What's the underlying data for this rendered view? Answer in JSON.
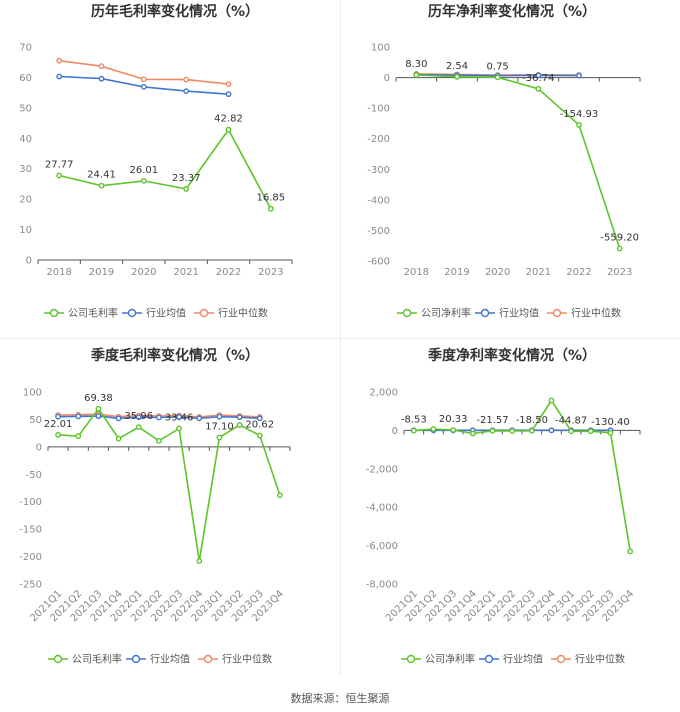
{
  "colors": {
    "company": "#5ec42a",
    "industry_avg": "#3f77cf",
    "industry_median": "#ef8a65",
    "grid": "#e6e6e6",
    "axis_text": "#8a8a8a",
    "label_text": "#333333",
    "title_text": "#333333"
  },
  "chart_data": [
    {
      "type": "line",
      "title": "历年毛利率变化情况（%）",
      "categories": [
        "2018",
        "2019",
        "2020",
        "2021",
        "2022",
        "2023"
      ],
      "ylim": [
        0,
        70
      ],
      "yticks": [
        0,
        10,
        20,
        30,
        40,
        50,
        60,
        70
      ],
      "ytick_labels": [
        "0",
        "10",
        "20",
        "30",
        "40",
        "50",
        "60",
        "70"
      ],
      "xlabel_rotate": false,
      "grid": false,
      "legend_position": "bottom-center",
      "series": [
        {
          "name": "公司毛利率",
          "key": "company",
          "values": [
            27.77,
            24.41,
            26.01,
            23.37,
            42.82,
            16.85
          ],
          "labels": [
            "27.77",
            "24.41",
            "26.01",
            "23.37",
            "42.82",
            "16.85"
          ]
        },
        {
          "name": "行业均值",
          "key": "industry_avg",
          "values": [
            60.3,
            59.6,
            56.9,
            55.5,
            54.5,
            null
          ],
          "labels": []
        },
        {
          "name": "行业中位数",
          "key": "industry_median",
          "values": [
            65.5,
            63.7,
            59.4,
            59.3,
            57.8,
            null
          ],
          "labels": []
        }
      ]
    },
    {
      "type": "line",
      "title": "历年净利率变化情况（%）",
      "categories": [
        "2018",
        "2019",
        "2020",
        "2021",
        "2022",
        "2023"
      ],
      "ylim": [
        -600,
        100
      ],
      "yticks": [
        -600,
        -500,
        -400,
        -300,
        -200,
        -100,
        0,
        100
      ],
      "ytick_labels": [
        "-600",
        "-500",
        "-400",
        "-300",
        "-200",
        "-100",
        "0",
        "100"
      ],
      "xlabel_rotate": false,
      "grid": false,
      "legend_position": "bottom-center",
      "series": [
        {
          "name": "公司净利率",
          "key": "company",
          "values": [
            8.3,
            2.54,
            0.75,
            -36.74,
            -154.93,
            -559.2
          ],
          "labels": [
            "8.30",
            "2.54",
            "0.75",
            "-36.74",
            "-154.93",
            "-559.20"
          ]
        },
        {
          "name": "行业均值",
          "key": "industry_avg",
          "values": [
            9.5,
            7.8,
            6.0,
            7.0,
            6.5,
            null
          ],
          "labels": []
        },
        {
          "name": "行业中位数",
          "key": "industry_median",
          "values": [
            12.0,
            10.5,
            8.5,
            9.0,
            8.5,
            null
          ],
          "labels": []
        }
      ]
    },
    {
      "type": "line",
      "title": "季度毛利率变化情况（%）",
      "categories": [
        "2021Q1",
        "2021Q2",
        "2021Q3",
        "2021Q4",
        "2022Q1",
        "2022Q2",
        "2022Q3",
        "2022Q4",
        "2023Q1",
        "2023Q2",
        "2023Q3",
        "2023Q4"
      ],
      "ylim": [
        -250,
        100
      ],
      "yticks": [
        -250,
        -200,
        -150,
        -100,
        -50,
        0,
        50,
        100
      ],
      "ytick_labels": [
        "-250",
        "-200",
        "-150",
        "-100",
        "-50",
        "0",
        "50",
        "100"
      ],
      "xlabel_rotate": true,
      "grid": false,
      "legend_position": "bottom-center",
      "series": [
        {
          "name": "公司毛利率",
          "key": "company",
          "values": [
            22.01,
            19.5,
            69.38,
            15.0,
            35.96,
            11.0,
            33.46,
            -208.0,
            17.1,
            40.0,
            20.62,
            -88.0
          ],
          "labels": [
            "22.01",
            "",
            "69.38",
            "",
            "35.96",
            "",
            "33.46",
            "",
            "17.10",
            "",
            "20.62",
            ""
          ]
        },
        {
          "name": "行业均值",
          "key": "industry_avg",
          "values": [
            55.0,
            55.5,
            56.0,
            52.0,
            54.0,
            53.5,
            54.5,
            52.0,
            55.0,
            54.0,
            52.0,
            null
          ],
          "labels": []
        },
        {
          "name": "行业中位数",
          "key": "industry_median",
          "values": [
            58.0,
            58.5,
            59.5,
            55.0,
            57.0,
            56.0,
            57.0,
            54.5,
            58.0,
            56.5,
            54.5,
            null
          ],
          "labels": []
        }
      ]
    },
    {
      "type": "line",
      "title": "季度净利率变化情况（%）",
      "categories": [
        "2021Q1",
        "2021Q2",
        "2021Q3",
        "2021Q4",
        "2022Q1",
        "2022Q2",
        "2022Q3",
        "2022Q4",
        "2023Q1",
        "2023Q2",
        "2023Q3",
        "2023Q4"
      ],
      "ylim": [
        -8000,
        2000
      ],
      "yticks": [
        -8000,
        -6000,
        -4000,
        -2000,
        0,
        2000
      ],
      "ytick_labels": [
        "-8,000",
        "-6,000",
        "-4,000",
        "-2,000",
        "0",
        "2,000"
      ],
      "xlabel_rotate": true,
      "grid": false,
      "legend_position": "bottom-center",
      "series": [
        {
          "name": "公司净利率",
          "key": "company",
          "values": [
            -8.53,
            70.0,
            20.33,
            -160.0,
            -21.57,
            -30.0,
            -18.5,
            1560.0,
            -44.87,
            -40.0,
            -130.4,
            -6300.0
          ],
          "labels": [
            "-8.53",
            "",
            "20.33",
            "",
            "-21.57",
            "",
            "-18.50",
            "",
            "-44.87",
            "",
            "-130.40",
            ""
          ]
        },
        {
          "name": "行业均值",
          "key": "industry_avg",
          "values": [
            5.0,
            5.0,
            5.0,
            4.0,
            5.0,
            5.0,
            5.0,
            3.0,
            5.0,
            5.0,
            3.0,
            null
          ],
          "labels": []
        },
        {
          "name": "行业中位数",
          "key": "industry_median",
          "values": [
            8.0,
            8.0,
            8.0,
            6.0,
            8.0,
            8.0,
            8.0,
            5.0,
            8.0,
            8.0,
            5.0,
            null
          ],
          "labels": []
        }
      ]
    }
  ],
  "footer": {
    "source": "数据来源：恒生聚源"
  }
}
